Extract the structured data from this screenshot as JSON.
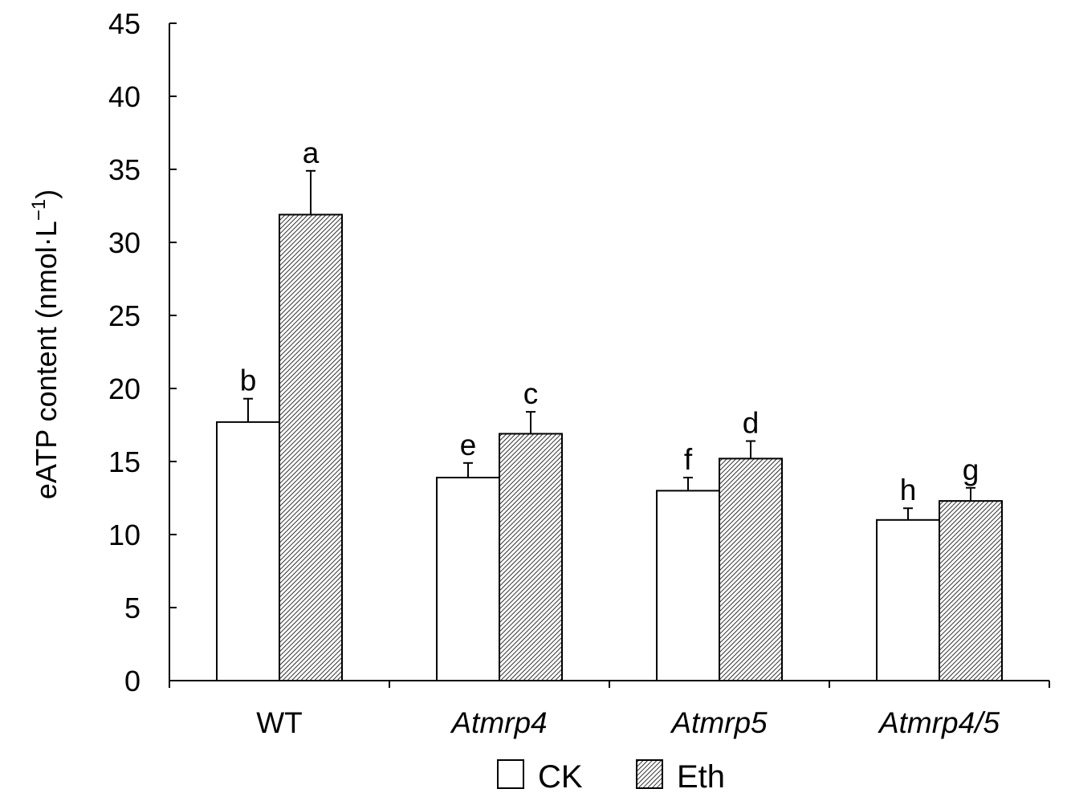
{
  "chart_data": {
    "type": "bar",
    "title": "",
    "xlabel": "",
    "ylabel": "eATP content (nmol·L",
    "ylabel_superscript": "−1",
    "ylabel_close": ")",
    "ylim": [
      0,
      45
    ],
    "yticks": [
      "0",
      "5",
      "10",
      "15",
      "20",
      "25",
      "30",
      "35",
      "40",
      "45"
    ],
    "categories": [
      "WT",
      "Atmrp4",
      "Atmrp5",
      "Atmrp4/5"
    ],
    "categories_italic": [
      false,
      true,
      true,
      true
    ],
    "series": [
      {
        "name": "CK",
        "fill": "#ffffff",
        "values": [
          17.7,
          13.9,
          13.0,
          11.0
        ],
        "errors": [
          1.6,
          1.0,
          0.9,
          0.8
        ],
        "significance": [
          "b",
          "e",
          "f",
          "h"
        ]
      },
      {
        "name": "Eth",
        "fill": "hatched",
        "values": [
          31.9,
          16.9,
          15.2,
          12.3
        ],
        "errors": [
          3.0,
          1.5,
          1.2,
          0.9
        ],
        "significance": [
          "a",
          "c",
          "d",
          "g"
        ]
      }
    ],
    "grid": false,
    "legend_position": "bottom-center"
  }
}
